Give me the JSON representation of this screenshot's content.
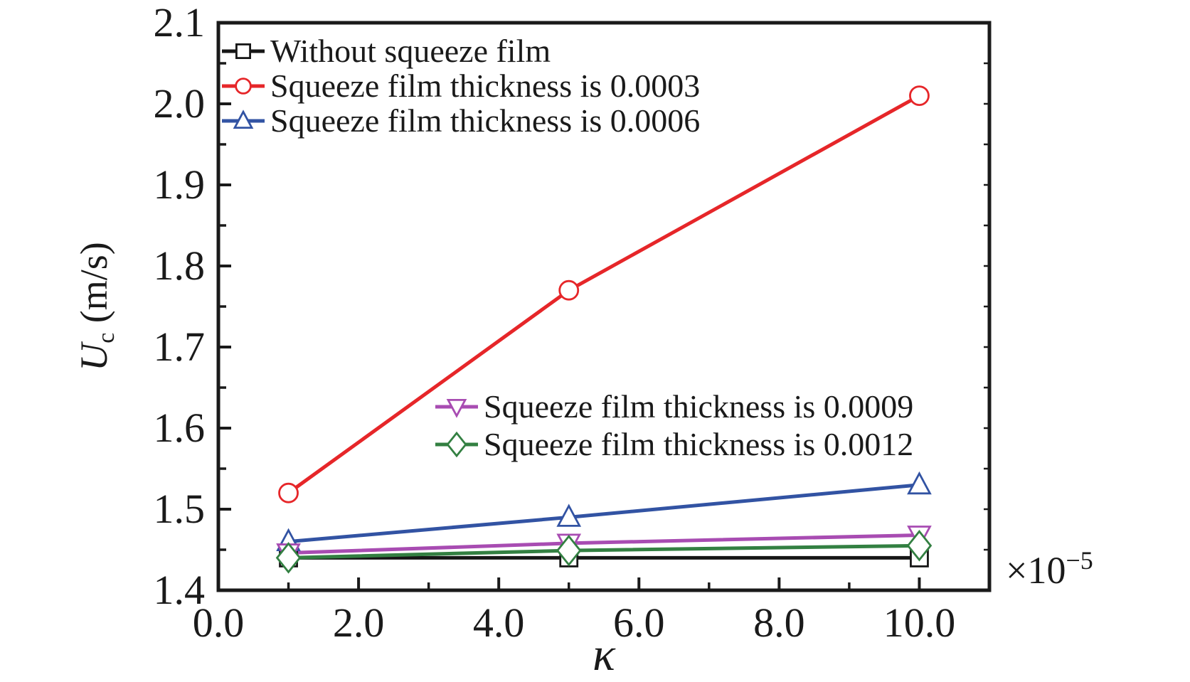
{
  "figure": {
    "background": "#ffffff",
    "axis_color": "#1a1a1a",
    "text_color": "#1a1a1a"
  },
  "chart_data": {
    "type": "line",
    "x": [
      1.0,
      5.0,
      10.0
    ],
    "x_multiplier": {
      "base": "×10",
      "exponent": "−5"
    },
    "xlabel": "κ",
    "ylabel": {
      "variable": "U",
      "subscript": "c",
      "unit": " (m/s)"
    },
    "xlim": [
      0,
      11
    ],
    "ylim": [
      1.4,
      2.1
    ],
    "grid": false,
    "legend_position": "two blocks inside plot: top-left and center",
    "x_ticks": [
      {
        "value": 0,
        "label": "0.0"
      },
      {
        "value": 2,
        "label": "2.0"
      },
      {
        "value": 4,
        "label": "4.0"
      },
      {
        "value": 6,
        "label": "6.0"
      },
      {
        "value": 8,
        "label": "8.0"
      },
      {
        "value": 10,
        "label": "10.0"
      }
    ],
    "x_minor_ticks": [
      1,
      3,
      5,
      7,
      9
    ],
    "y_ticks": [
      {
        "value": 1.4,
        "label": "1.4"
      },
      {
        "value": 1.5,
        "label": "1.5"
      },
      {
        "value": 1.6,
        "label": "1.6"
      },
      {
        "value": 1.7,
        "label": "1.7"
      },
      {
        "value": 1.8,
        "label": "1.8"
      },
      {
        "value": 1.9,
        "label": "1.9"
      },
      {
        "value": 2.0,
        "label": "2.0"
      },
      {
        "value": 2.1,
        "label": "2.1"
      }
    ],
    "y_minor_ticks": [
      1.45,
      1.55,
      1.65,
      1.75,
      1.85,
      1.95,
      2.05
    ],
    "right_axis_minor_ticks": [
      1.45,
      1.5,
      1.55,
      1.6,
      1.65,
      1.7,
      1.75,
      1.8,
      1.85,
      1.9,
      1.95,
      2.0,
      2.05
    ],
    "series": [
      {
        "name": "Without squeeze film",
        "color": "#161616",
        "marker": "square",
        "values": [
          1.44,
          1.44,
          1.44
        ]
      },
      {
        "name": "Squeeze film thickness is 0.0003",
        "color": "#e62629",
        "marker": "circle",
        "values": [
          1.52,
          1.77,
          2.01
        ]
      },
      {
        "name": "Squeeze film thickness is 0.0006",
        "color": "#3253a3",
        "marker": "triangle-up",
        "values": [
          1.46,
          1.49,
          1.53
        ]
      },
      {
        "name": "Squeeze film thickness is 0.0009",
        "color": "#a84cb2",
        "marker": "triangle-down",
        "values": [
          1.446,
          1.458,
          1.468
        ]
      },
      {
        "name": "Squeeze film thickness is 0.0012",
        "color": "#338042",
        "marker": "diamond",
        "values": [
          1.44,
          1.449,
          1.455
        ]
      }
    ],
    "legend_groups": [
      {
        "series": [
          0,
          1,
          2
        ]
      },
      {
        "series": [
          3,
          4
        ]
      }
    ]
  }
}
